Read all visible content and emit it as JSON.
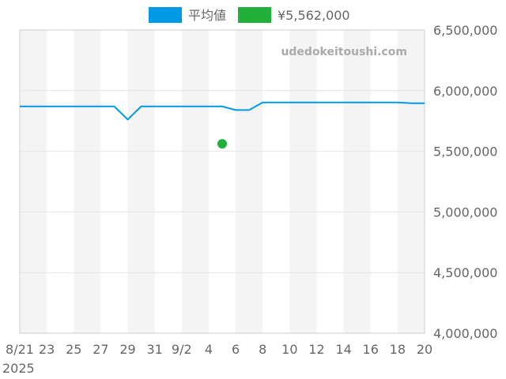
{
  "chart_data": {
    "type": "line",
    "title": "",
    "watermark": "udedokeitoushi.com",
    "legend": [
      {
        "name": "平均値",
        "color": "#0099e6"
      },
      {
        "name": "¥5,562,000",
        "color": "#22b03a"
      }
    ],
    "legend_position": "top-center",
    "x_start": "2025-08-21",
    "x_days": 30,
    "x_tick_labels": [
      "8/21",
      "23",
      "25",
      "27",
      "29",
      "31",
      "9/2",
      "4",
      "6",
      "8",
      "10",
      "12",
      "14",
      "16",
      "18",
      "20"
    ],
    "x_year_label": "2025",
    "ylim": [
      4000000,
      6500000
    ],
    "y_tick_labels": [
      "4,000,000",
      "4,500,000",
      "5,000,000",
      "5,500,000",
      "6,000,000",
      "6,500,000"
    ],
    "y_ticks": [
      4000000,
      4500000,
      5000000,
      5500000,
      6000000,
      6500000
    ],
    "y_axis_side": "right",
    "grid": true,
    "series": [
      {
        "name": "平均値",
        "color": "#0099e6",
        "points": [
          [
            0,
            5870000
          ],
          [
            7,
            5870000
          ],
          [
            8,
            5762000
          ],
          [
            9,
            5870000
          ],
          [
            15,
            5870000
          ],
          [
            16,
            5840000
          ],
          [
            17,
            5840000
          ],
          [
            18,
            5903000
          ],
          [
            28,
            5903000
          ],
          [
            29,
            5896000
          ],
          [
            30,
            5896000
          ]
        ]
      },
      {
        "name": "¥5,562,000",
        "color": "#22b03a",
        "type": "scatter",
        "points": [
          [
            15,
            5562000
          ]
        ]
      }
    ]
  }
}
